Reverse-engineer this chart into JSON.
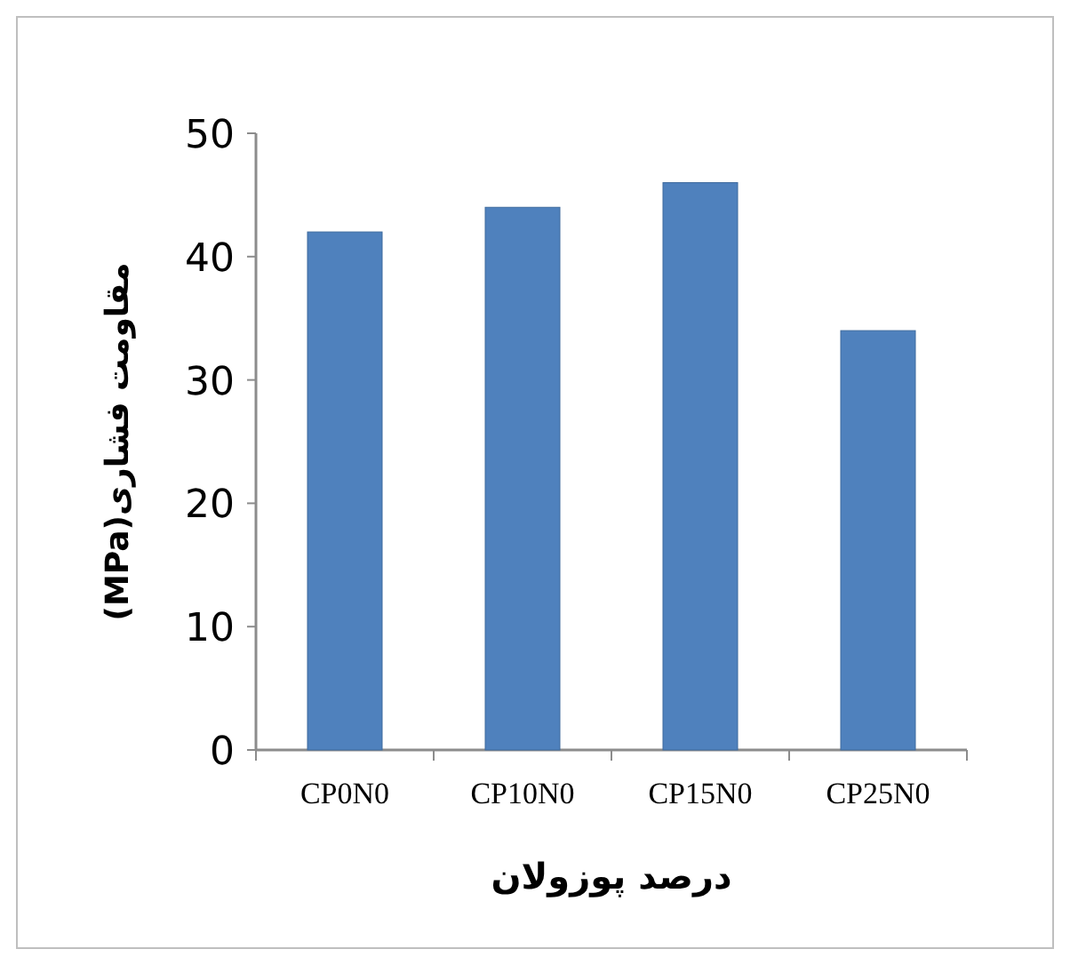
{
  "chart_data": {
    "type": "bar",
    "xlabel": "درصد پوزولان",
    "ylabel": "مقاومت فشاری(MPa)",
    "categories": [
      "CP0N0",
      "CP10N0",
      "CP15N0",
      "CP25N0"
    ],
    "values": [
      42,
      44,
      46,
      34
    ],
    "color": "#4f81bd",
    "ylim": [
      0,
      50
    ],
    "yticks": [
      0,
      10,
      20,
      30,
      40,
      50
    ]
  }
}
